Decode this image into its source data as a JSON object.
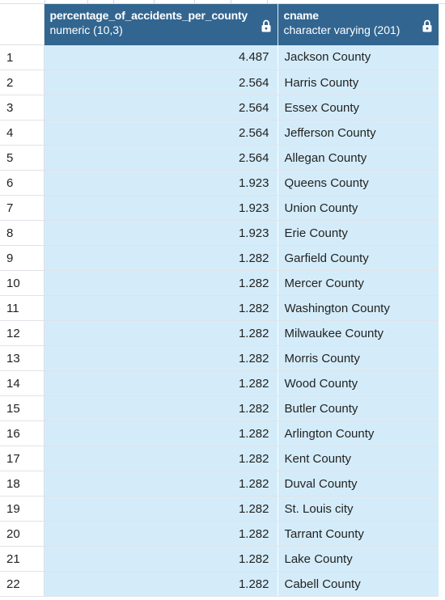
{
  "columns": [
    {
      "name": "percentage_of_accidents_per_county",
      "type": "numeric (10,3)",
      "icon": "lock-icon"
    },
    {
      "name": "cname",
      "type": "character varying (201)",
      "icon": "lock-icon"
    }
  ],
  "colors": {
    "header_bg": "#326690",
    "selected_cell_bg": "#d4ecf9"
  },
  "rows": [
    {
      "index": "1",
      "percentage": "4.487",
      "cname": "Jackson County"
    },
    {
      "index": "2",
      "percentage": "2.564",
      "cname": "Harris County"
    },
    {
      "index": "3",
      "percentage": "2.564",
      "cname": "Essex County"
    },
    {
      "index": "4",
      "percentage": "2.564",
      "cname": "Jefferson County"
    },
    {
      "index": "5",
      "percentage": "2.564",
      "cname": "Allegan County"
    },
    {
      "index": "6",
      "percentage": "1.923",
      "cname": "Queens County"
    },
    {
      "index": "7",
      "percentage": "1.923",
      "cname": "Union County"
    },
    {
      "index": "8",
      "percentage": "1.923",
      "cname": "Erie County"
    },
    {
      "index": "9",
      "percentage": "1.282",
      "cname": "Garfield County"
    },
    {
      "index": "10",
      "percentage": "1.282",
      "cname": "Mercer County"
    },
    {
      "index": "11",
      "percentage": "1.282",
      "cname": "Washington County"
    },
    {
      "index": "12",
      "percentage": "1.282",
      "cname": "Milwaukee County"
    },
    {
      "index": "13",
      "percentage": "1.282",
      "cname": "Morris County"
    },
    {
      "index": "14",
      "percentage": "1.282",
      "cname": "Wood County"
    },
    {
      "index": "15",
      "percentage": "1.282",
      "cname": "Butler County"
    },
    {
      "index": "16",
      "percentage": "1.282",
      "cname": "Arlington County"
    },
    {
      "index": "17",
      "percentage": "1.282",
      "cname": "Kent County"
    },
    {
      "index": "18",
      "percentage": "1.282",
      "cname": "Duval County"
    },
    {
      "index": "19",
      "percentage": "1.282",
      "cname": "St. Louis city"
    },
    {
      "index": "20",
      "percentage": "1.282",
      "cname": "Tarrant County"
    },
    {
      "index": "21",
      "percentage": "1.282",
      "cname": "Lake County"
    },
    {
      "index": "22",
      "percentage": "1.282",
      "cname": "Cabell County"
    }
  ]
}
